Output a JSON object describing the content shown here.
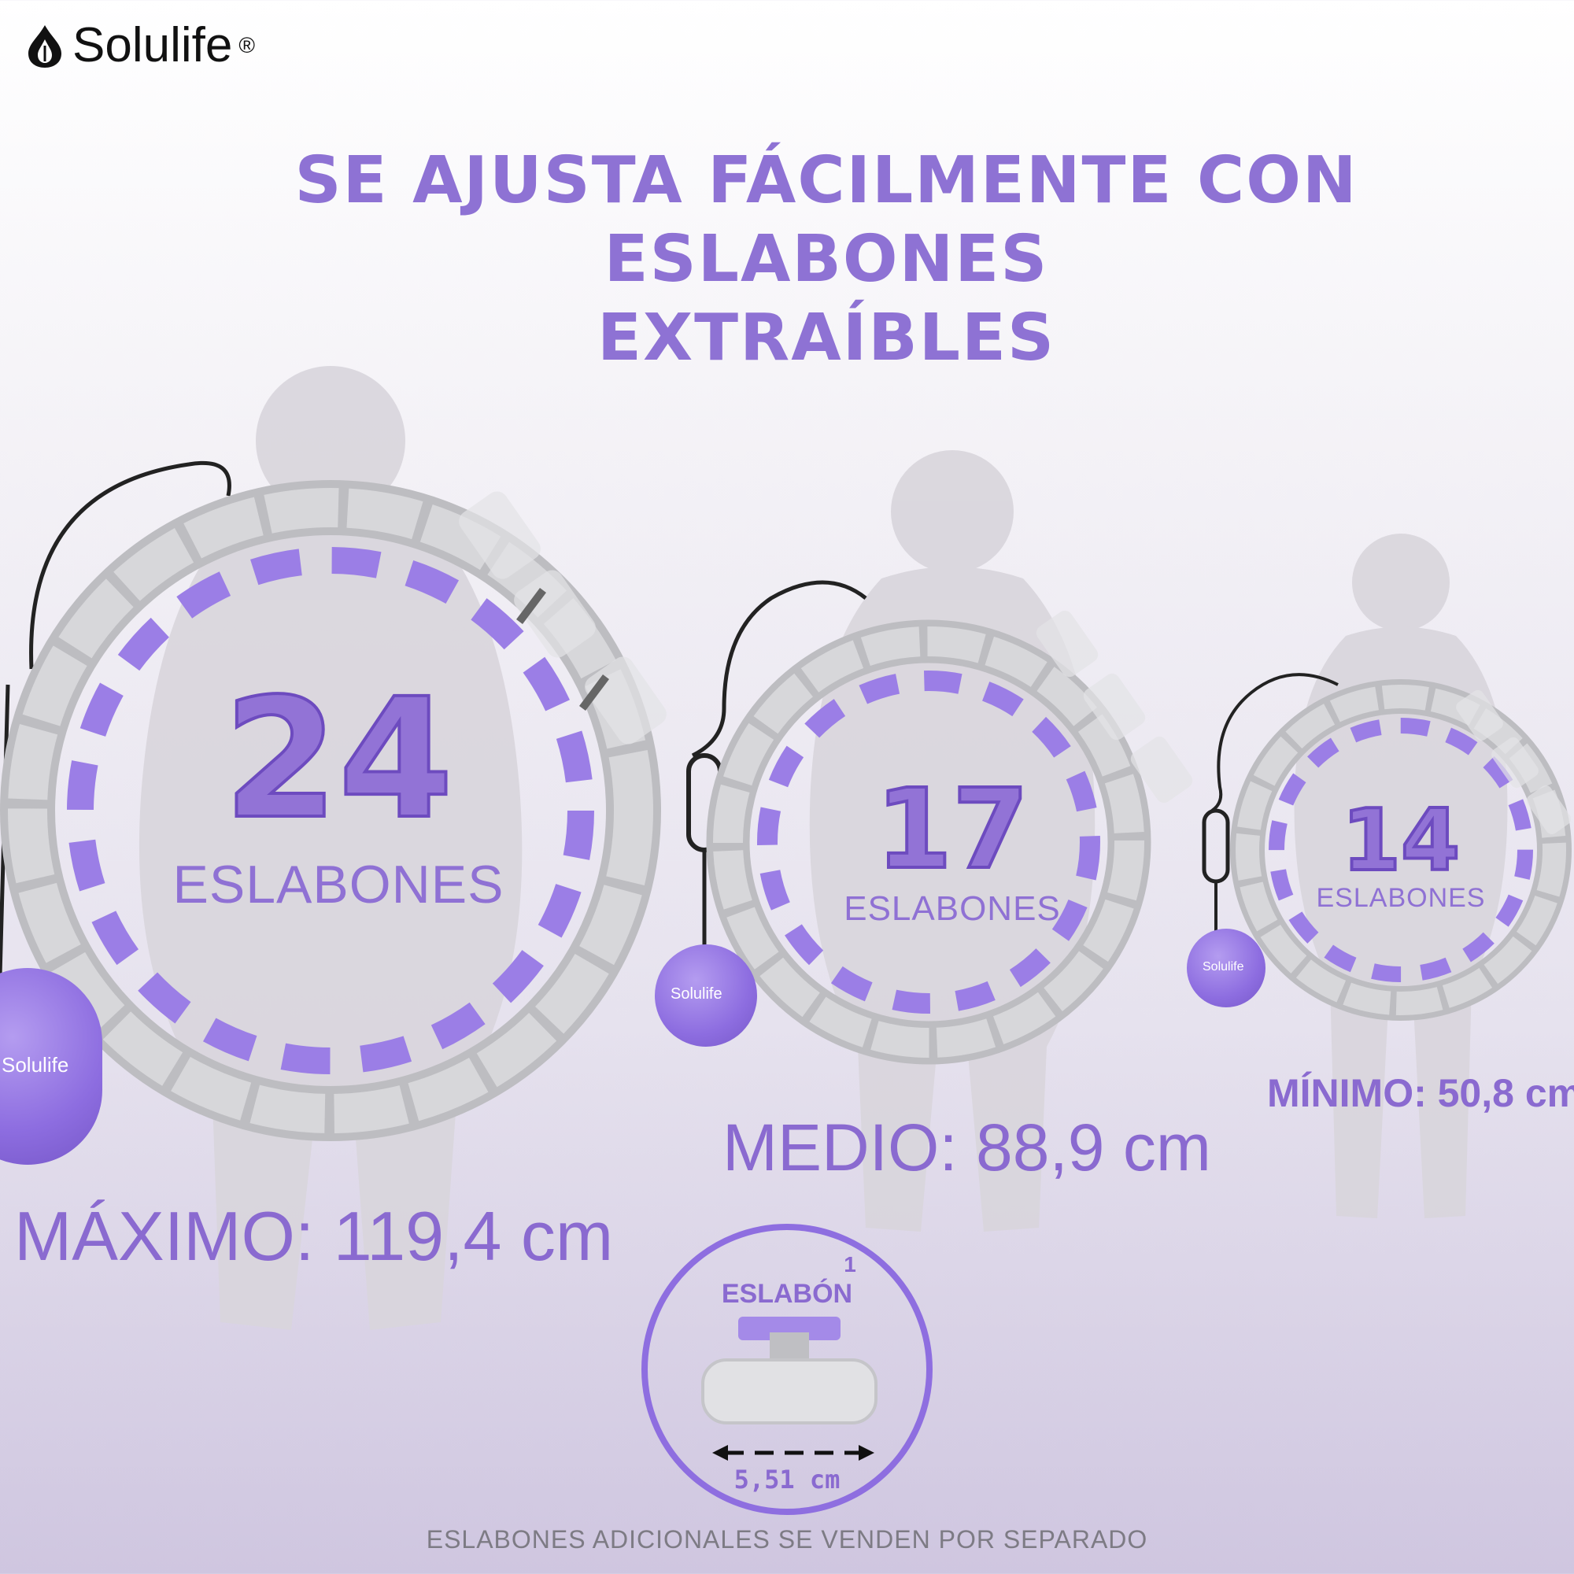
{
  "brand": {
    "name": "Solulife",
    "reg": "®",
    "icon": "leaf-drop-icon"
  },
  "headline": {
    "line1": "SE AJUSTA FÁCILMENTE CON ESLABONES",
    "line2": "EXTRAÍBLES"
  },
  "hoops": [
    {
      "count": "24",
      "unit": "ESLABONES",
      "size": "MÁXIMO: 119,4 cm"
    },
    {
      "count": "17",
      "unit": "ESLABONES",
      "size": "MEDIO: 88,9 cm"
    },
    {
      "count": "14",
      "unit": "ESLABONES",
      "size": "MÍNIMO: 50,8 cm"
    }
  ],
  "ball_brand": "Solulife",
  "link_detail": {
    "count": "1",
    "unit": "ESLABÓN",
    "length": "5,51 cm"
  },
  "footer": "ESLABONES ADICIONALES SE VENDEN POR SEPARADO",
  "colors": {
    "accent": "#8e72d4",
    "hoop_gray": "#c9c9cc",
    "pad_purple": "#9b7ee6"
  }
}
